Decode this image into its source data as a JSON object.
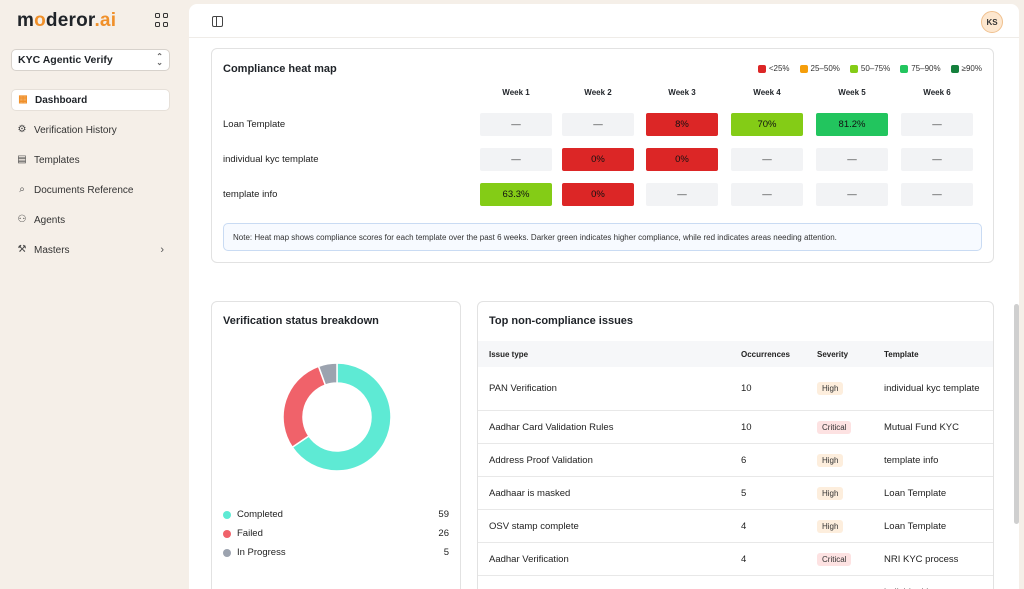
{
  "brand": {
    "name_pre": "m",
    "name_o": "o",
    "name_mid": "deror",
    "name_suffix": ".ai"
  },
  "workspace": {
    "name": "KYC Agentic Verify"
  },
  "sidebar": {
    "items": [
      {
        "label": "Dashboard",
        "icon": "grid-icon",
        "active": true
      },
      {
        "label": "Verification History",
        "icon": "gear-icon"
      },
      {
        "label": "Templates",
        "icon": "document-icon"
      },
      {
        "label": "Documents Reference",
        "icon": "document-search-icon"
      },
      {
        "label": "Agents",
        "icon": "users-icon"
      },
      {
        "label": "Masters",
        "icon": "tools-icon",
        "has_arrow": true
      }
    ]
  },
  "user": {
    "initials": "KS"
  },
  "heatmap": {
    "title": "Compliance heat map",
    "legend": [
      {
        "label": "<25%",
        "color": "#dc2626"
      },
      {
        "label": "25–50%",
        "color": "#f59e0b"
      },
      {
        "label": "50–75%",
        "color": "#84cc16"
      },
      {
        "label": "75–90%",
        "color": "#22c55e"
      },
      {
        "label": "≥90%",
        "color": "#15803d"
      }
    ],
    "weeks": [
      "Week 1",
      "Week 2",
      "Week 3",
      "Week 4",
      "Week 5",
      "Week 6"
    ],
    "rows": [
      {
        "label": "Loan Template",
        "values": [
          "—",
          "—",
          "8%",
          "70%",
          "81.2%",
          "—"
        ]
      },
      {
        "label": "individual kyc template",
        "values": [
          "—",
          "0%",
          "0%",
          "—",
          "—",
          "—"
        ]
      },
      {
        "label": "template info",
        "values": [
          "63.3%",
          "0%",
          "—",
          "—",
          "—",
          "—"
        ]
      }
    ],
    "note": "Note: Heat map shows compliance scores for each template over the past 6 weeks. Darker green indicates higher compliance, while red indicates areas needing attention."
  },
  "verification": {
    "title": "Verification status breakdown",
    "items": [
      {
        "label": "Completed",
        "value": 59,
        "color": "#5eead4"
      },
      {
        "label": "Failed",
        "value": 26,
        "color": "#f0626a"
      },
      {
        "label": "In Progress",
        "value": 5,
        "color": "#9ca3af"
      }
    ]
  },
  "issues": {
    "title": "Top non-compliance issues",
    "headers": [
      "Issue type",
      "Occurrences",
      "Severity",
      "Template"
    ],
    "rows": [
      {
        "issue": "PAN Verification",
        "count": "10",
        "severity": "High",
        "template": "individual kyc template"
      },
      {
        "issue": "Aadhar Card Validation Rules",
        "count": "10",
        "severity": "Critical",
        "template": "Mutual Fund KYC"
      },
      {
        "issue": "Address Proof Validation",
        "count": "6",
        "severity": "High",
        "template": "template info"
      },
      {
        "issue": "Aadhaar is masked",
        "count": "5",
        "severity": "High",
        "template": "Loan Template"
      },
      {
        "issue": "OSV stamp complete",
        "count": "4",
        "severity": "High",
        "template": "Loan Template"
      },
      {
        "issue": "Aadhar Verification",
        "count": "4",
        "severity": "Critical",
        "template": "NRI KYC process"
      },
      {
        "issue": "",
        "count": "",
        "severity": "",
        "template": "individual kyc"
      }
    ]
  }
}
